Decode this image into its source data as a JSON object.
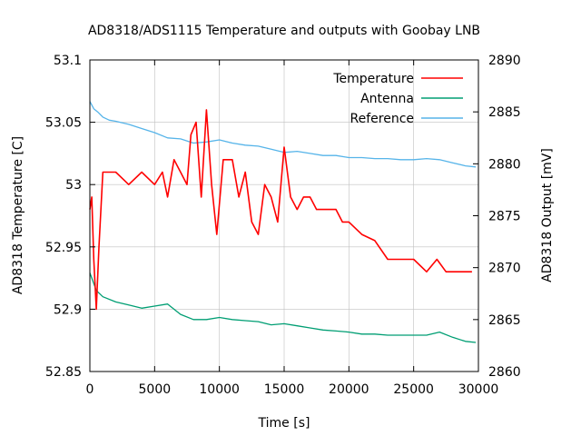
{
  "chart_data": {
    "type": "line",
    "title": "AD8318/ADS1115 Temperature and outputs with Goobay LNB",
    "xlabel": "Time [s]",
    "ylabel": "AD8318 Temperature [C]",
    "y2label": "AD8318 Output [mV]",
    "xlim": [
      0,
      30000
    ],
    "ylim": [
      52.85,
      53.1
    ],
    "y2lim": [
      2860,
      2890
    ],
    "x_ticks": [
      "0",
      "5000",
      "10000",
      "15000",
      "20000",
      "25000",
      "30000"
    ],
    "y_ticks": [
      "52.85",
      "52.9",
      "52.95",
      "53",
      "53.05",
      "53.1"
    ],
    "y2_ticks": [
      "2860",
      "2865",
      "2870",
      "2875",
      "2880",
      "2885",
      "2890"
    ],
    "grid": true,
    "legend_position": "top-right",
    "series": [
      {
        "name": "Temperature",
        "axis": "left",
        "color": "#ff0000",
        "x": [
          0,
          150,
          300,
          500,
          700,
          1000,
          1500,
          2000,
          3000,
          4000,
          5000,
          5600,
          6000,
          6500,
          7000,
          7500,
          7800,
          8200,
          8600,
          9000,
          9400,
          9800,
          10300,
          11000,
          11500,
          12000,
          12500,
          13000,
          13500,
          14000,
          14500,
          15000,
          15500,
          16000,
          16500,
          17000,
          17500,
          18000,
          18500,
          19000,
          19500,
          20000,
          21000,
          22000,
          23000,
          24000,
          25000,
          26000,
          26800,
          27500,
          28000,
          28500,
          29000,
          29500
        ],
        "values": [
          52.98,
          52.99,
          52.94,
          52.9,
          52.95,
          53.01,
          53.01,
          53.01,
          53.0,
          53.01,
          53.0,
          53.01,
          52.99,
          53.02,
          53.01,
          53.0,
          53.04,
          53.05,
          52.99,
          53.06,
          53.0,
          52.96,
          53.02,
          53.02,
          52.99,
          53.01,
          52.97,
          52.96,
          53.0,
          52.99,
          52.97,
          53.03,
          52.99,
          52.98,
          52.99,
          52.99,
          52.98,
          52.98,
          52.98,
          52.98,
          52.97,
          52.97,
          52.96,
          52.955,
          52.94,
          52.94,
          52.94,
          52.93,
          52.94,
          52.93,
          52.93,
          52.93,
          52.93,
          52.93
        ]
      },
      {
        "name": "Antenna",
        "axis": "right",
        "color": "#009e73",
        "x": [
          0,
          500,
          1000,
          2000,
          3000,
          4000,
          5000,
          6000,
          7000,
          8000,
          9000,
          10000,
          11000,
          12000,
          13000,
          14000,
          15000,
          16000,
          17000,
          18000,
          19000,
          20000,
          21000,
          22000,
          23000,
          24000,
          25000,
          26000,
          27000,
          28000,
          29000,
          29800
        ],
        "values": [
          2869.5,
          2867.8,
          2867.2,
          2866.7,
          2866.4,
          2866.1,
          2866.3,
          2866.5,
          2865.5,
          2865.0,
          2865.0,
          2865.2,
          2865.0,
          2864.9,
          2864.8,
          2864.5,
          2864.6,
          2864.4,
          2864.2,
          2864.0,
          2863.9,
          2863.8,
          2863.6,
          2863.6,
          2863.5,
          2863.5,
          2863.5,
          2863.5,
          2863.8,
          2863.3,
          2862.9,
          2862.8
        ]
      },
      {
        "name": "Reference",
        "axis": "right",
        "color": "#56b4e9",
        "x": [
          0,
          300,
          600,
          1000,
          1500,
          2000,
          3000,
          4000,
          5000,
          6000,
          7000,
          8000,
          9000,
          10000,
          11000,
          12000,
          13000,
          14000,
          15000,
          16000,
          17000,
          18000,
          19000,
          20000,
          21000,
          22000,
          23000,
          24000,
          25000,
          26000,
          27000,
          28000,
          29000,
          29800
        ],
        "values": [
          2886.0,
          2885.3,
          2885.0,
          2884.5,
          2884.2,
          2884.1,
          2883.8,
          2883.4,
          2883.0,
          2882.5,
          2882.4,
          2882.0,
          2882.1,
          2882.3,
          2882.0,
          2881.8,
          2881.7,
          2881.4,
          2881.1,
          2881.2,
          2881.0,
          2880.8,
          2880.8,
          2880.6,
          2880.6,
          2880.5,
          2880.5,
          2880.4,
          2880.4,
          2880.5,
          2880.4,
          2880.1,
          2879.8,
          2879.7
        ]
      }
    ]
  }
}
